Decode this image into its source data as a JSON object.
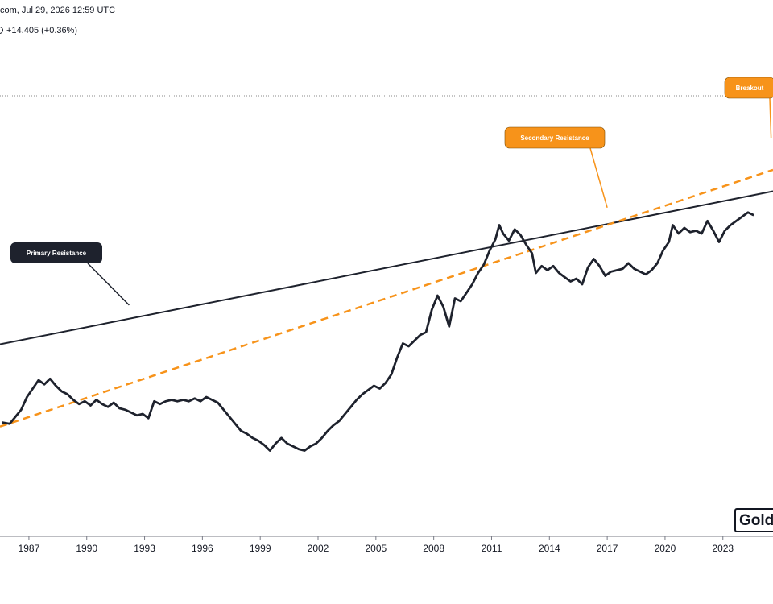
{
  "header": {
    "line1": "com, Jul 29, 2026 12:59 UTC",
    "line2_icon": "status-circle-icon",
    "line2": "+14.405 (+0.36%)",
    "line2_color": "#131722"
  },
  "logo": {
    "text": "Gold",
    "icon": "brand-logo-icon"
  },
  "chart_data": {
    "type": "line",
    "title": "",
    "xlabel": "",
    "ylabel": "",
    "x_ticks": [
      "1987",
      "1990",
      "1993",
      "1996",
      "1999",
      "2002",
      "2005",
      "2008",
      "2011",
      "2014",
      "2017",
      "2020",
      "2023"
    ],
    "xlim": [
      1985.5,
      2025.6
    ],
    "ylim": [
      0,
      100
    ],
    "grid": false,
    "legend": "none",
    "series": [
      {
        "color": "#1e222d",
        "points": [
          [
            1985.6,
            23.0
          ],
          [
            1986.0,
            22.5
          ],
          [
            1986.3,
            25.0
          ],
          [
            1986.6,
            27.5
          ],
          [
            1986.9,
            32.0
          ],
          [
            1987.2,
            35.0
          ],
          [
            1987.5,
            38.0
          ],
          [
            1987.8,
            36.5
          ],
          [
            1988.1,
            38.5
          ],
          [
            1988.4,
            36.0
          ],
          [
            1988.7,
            34.0
          ],
          [
            1989.0,
            33.0
          ],
          [
            1989.3,
            31.0
          ],
          [
            1989.6,
            29.5
          ],
          [
            1989.9,
            30.5
          ],
          [
            1990.2,
            29.0
          ],
          [
            1990.5,
            31.0
          ],
          [
            1990.8,
            29.5
          ],
          [
            1991.1,
            28.5
          ],
          [
            1991.4,
            30.0
          ],
          [
            1991.7,
            28.0
          ],
          [
            1992.0,
            27.5
          ],
          [
            1992.3,
            26.5
          ],
          [
            1992.6,
            25.5
          ],
          [
            1992.9,
            26.0
          ],
          [
            1993.2,
            24.5
          ],
          [
            1993.5,
            30.5
          ],
          [
            1993.8,
            29.5
          ],
          [
            1994.1,
            30.5
          ],
          [
            1994.4,
            31.0
          ],
          [
            1994.7,
            30.5
          ],
          [
            1995.0,
            31.0
          ],
          [
            1995.3,
            30.5
          ],
          [
            1995.6,
            31.5
          ],
          [
            1995.9,
            30.5
          ],
          [
            1996.2,
            32.0
          ],
          [
            1996.5,
            31.0
          ],
          [
            1996.8,
            30.0
          ],
          [
            1997.1,
            27.5
          ],
          [
            1997.4,
            25.0
          ],
          [
            1997.7,
            22.5
          ],
          [
            1998.0,
            20.0
          ],
          [
            1998.3,
            19.0
          ],
          [
            1998.6,
            17.5
          ],
          [
            1998.9,
            16.5
          ],
          [
            1999.2,
            15.0
          ],
          [
            1999.5,
            13.0
          ],
          [
            1999.8,
            15.5
          ],
          [
            2000.1,
            17.5
          ],
          [
            2000.4,
            15.5
          ],
          [
            2000.7,
            14.5
          ],
          [
            2001.0,
            13.5
          ],
          [
            2001.3,
            13.0
          ],
          [
            2001.6,
            14.5
          ],
          [
            2001.9,
            15.5
          ],
          [
            2002.2,
            17.5
          ],
          [
            2002.5,
            20.0
          ],
          [
            2002.8,
            22.0
          ],
          [
            2003.1,
            23.5
          ],
          [
            2003.4,
            26.0
          ],
          [
            2003.7,
            28.5
          ],
          [
            2004.0,
            31.0
          ],
          [
            2004.3,
            33.0
          ],
          [
            2004.6,
            34.5
          ],
          [
            2004.9,
            36.0
          ],
          [
            2005.2,
            35.0
          ],
          [
            2005.5,
            37.0
          ],
          [
            2005.8,
            40.0
          ],
          [
            2006.1,
            46.0
          ],
          [
            2006.4,
            51.0
          ],
          [
            2006.7,
            50.0
          ],
          [
            2007.0,
            52.0
          ],
          [
            2007.3,
            54.0
          ],
          [
            2007.6,
            55.0
          ],
          [
            2007.9,
            63.0
          ],
          [
            2008.2,
            68.0
          ],
          [
            2008.5,
            64.0
          ],
          [
            2008.8,
            57.0
          ],
          [
            2009.1,
            67.0
          ],
          [
            2009.4,
            66.0
          ],
          [
            2009.7,
            69.0
          ],
          [
            2010.0,
            72.0
          ],
          [
            2010.3,
            76.0
          ],
          [
            2010.6,
            79.0
          ],
          [
            2010.9,
            84.0
          ],
          [
            2011.2,
            88.0
          ],
          [
            2011.4,
            93.0
          ],
          [
            2011.6,
            90.0
          ],
          [
            2011.9,
            87.5
          ],
          [
            2012.2,
            91.5
          ],
          [
            2012.5,
            89.5
          ],
          [
            2012.8,
            86.0
          ],
          [
            2013.1,
            83.0
          ],
          [
            2013.3,
            76.0
          ],
          [
            2013.6,
            78.5
          ],
          [
            2013.9,
            77.0
          ],
          [
            2014.2,
            78.5
          ],
          [
            2014.5,
            76.0
          ],
          [
            2014.8,
            74.5
          ],
          [
            2015.1,
            73.0
          ],
          [
            2015.4,
            74.0
          ],
          [
            2015.7,
            72.0
          ],
          [
            2016.0,
            78.0
          ],
          [
            2016.3,
            81.0
          ],
          [
            2016.6,
            78.5
          ],
          [
            2016.9,
            75.0
          ],
          [
            2017.2,
            76.5
          ],
          [
            2017.5,
            77.0
          ],
          [
            2017.8,
            77.5
          ],
          [
            2018.1,
            79.5
          ],
          [
            2018.4,
            77.5
          ],
          [
            2018.7,
            76.5
          ],
          [
            2019.0,
            75.5
          ],
          [
            2019.3,
            77.0
          ],
          [
            2019.6,
            79.5
          ],
          [
            2019.9,
            84.0
          ],
          [
            2020.2,
            87.0
          ],
          [
            2020.4,
            93.0
          ],
          [
            2020.7,
            90.0
          ],
          [
            2021.0,
            92.0
          ],
          [
            2021.3,
            90.5
          ],
          [
            2021.6,
            91.0
          ],
          [
            2021.9,
            90.0
          ],
          [
            2022.2,
            94.5
          ],
          [
            2022.5,
            91.0
          ],
          [
            2022.8,
            87.0
          ],
          [
            2023.1,
            91.0
          ],
          [
            2023.4,
            93.0
          ],
          [
            2023.7,
            94.5
          ],
          [
            2024.0,
            96.0
          ],
          [
            2024.3,
            97.5
          ],
          [
            2024.6,
            96.5
          ]
        ]
      }
    ],
    "trendlines": [
      {
        "label": "Primary Resistance",
        "color": "#1e222d",
        "dash": false,
        "start": [
          1985.5,
          50.7
        ],
        "end": [
          2025.6,
          105.0
        ]
      },
      {
        "label": "Secondary Resistance",
        "color": "#f7931a",
        "dash": true,
        "start": [
          1985.5,
          21.5
        ],
        "end": [
          2025.6,
          112.6
        ]
      }
    ],
    "callouts": [
      {
        "label": "Primary Resistance",
        "fill": "#1e222d",
        "text_color": "#ffffff",
        "anchor": [
          1992.2,
          64.6
        ]
      },
      {
        "label": "Secondary Resistance",
        "fill": "#f7931a",
        "text_color": "#ffffff",
        "anchor": [
          2017.0,
          99.2
        ]
      },
      {
        "label": "Breakout",
        "fill": "#f7931a",
        "text_color": "#ffffff",
        "anchor": [
          2025.5,
          124.0
        ]
      }
    ]
  }
}
